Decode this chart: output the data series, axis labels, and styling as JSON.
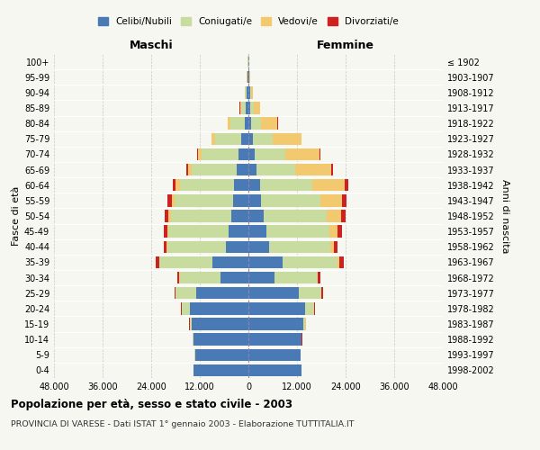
{
  "age_groups": [
    "0-4",
    "5-9",
    "10-14",
    "15-19",
    "20-24",
    "25-29",
    "30-34",
    "35-39",
    "40-44",
    "45-49",
    "50-54",
    "55-59",
    "60-64",
    "65-69",
    "70-74",
    "75-79",
    "80-84",
    "85-89",
    "90-94",
    "95-99",
    "100+"
  ],
  "birth_years": [
    "1998-2002",
    "1993-1997",
    "1988-1992",
    "1983-1987",
    "1978-1982",
    "1973-1977",
    "1968-1972",
    "1963-1967",
    "1958-1962",
    "1953-1957",
    "1948-1952",
    "1943-1947",
    "1938-1942",
    "1933-1937",
    "1928-1932",
    "1923-1927",
    "1918-1922",
    "1913-1917",
    "1908-1912",
    "1903-1907",
    "≤ 1902"
  ],
  "maschi": {
    "celibi": [
      13500,
      13200,
      13500,
      14000,
      14500,
      13000,
      7000,
      9000,
      5500,
      4800,
      4200,
      3800,
      3500,
      3000,
      2500,
      1800,
      1000,
      600,
      400,
      200,
      100
    ],
    "coniugati": [
      50,
      100,
      200,
      500,
      2000,
      5000,
      10000,
      13000,
      14500,
      15000,
      15000,
      14500,
      13500,
      11000,
      9000,
      6500,
      3500,
      1200,
      400,
      100,
      50
    ],
    "vedovi": [
      5,
      5,
      5,
      10,
      20,
      50,
      50,
      100,
      200,
      300,
      500,
      700,
      900,
      1000,
      1000,
      800,
      600,
      300,
      100,
      50,
      20
    ],
    "divorziati": [
      5,
      10,
      20,
      50,
      100,
      200,
      500,
      800,
      700,
      800,
      900,
      900,
      700,
      300,
      200,
      80,
      50,
      30,
      20,
      10,
      5
    ]
  },
  "femmine": {
    "nubili": [
      13000,
      12800,
      13000,
      13500,
      14000,
      12500,
      6500,
      8500,
      5200,
      4500,
      3800,
      3200,
      2800,
      2000,
      1500,
      1000,
      700,
      500,
      400,
      200,
      100
    ],
    "coniugate": [
      50,
      100,
      200,
      600,
      2200,
      5500,
      10500,
      13500,
      15000,
      15500,
      15500,
      14500,
      13000,
      9500,
      7500,
      5000,
      2500,
      800,
      300,
      80,
      30
    ],
    "vedove": [
      5,
      5,
      10,
      20,
      50,
      100,
      200,
      500,
      1000,
      2000,
      3500,
      5500,
      8000,
      9000,
      8500,
      7000,
      4000,
      1500,
      400,
      100,
      30
    ],
    "divorziate": [
      5,
      10,
      20,
      50,
      100,
      250,
      600,
      1000,
      900,
      1000,
      1100,
      1000,
      800,
      350,
      200,
      100,
      70,
      40,
      20,
      10,
      5
    ]
  },
  "colors": {
    "celibi": "#4a7ab5",
    "coniugati": "#c8dca0",
    "vedovi": "#f2c96e",
    "divorziati": "#cc2222"
  },
  "xlim": 48000,
  "xlabel_left": "Maschi",
  "xlabel_right": "Femmine",
  "ylabel_left": "Fasce di età",
  "ylabel_right": "Anni di nascita",
  "title": "Popolazione per età, sesso e stato civile - 2003",
  "subtitle": "PROVINCIA DI VARESE - Dati ISTAT 1° gennaio 2003 - Elaborazione TUTTITALIA.IT",
  "legend_labels": [
    "Celibi/Nubili",
    "Coniugati/e",
    "Vedovi/e",
    "Divorziati/e"
  ],
  "background_color": "#f7f7f2"
}
